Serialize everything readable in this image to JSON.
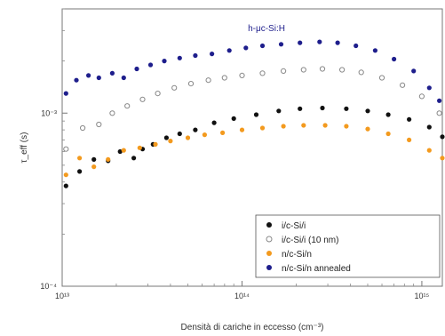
{
  "chart_data": {
    "type": "scatter",
    "title": "",
    "annotation": "h-μc-Si:H",
    "xlabel": "Densità di cariche in eccesso (cm⁻³)",
    "ylabel": "τ_eff (s)",
    "x_scale": "log",
    "y_scale": "log",
    "xlim": [
      10000000000000.0,
      1300000000000000.0
    ],
    "ylim": [
      0.0001,
      0.004
    ],
    "x_ticks": [
      {
        "value": 10000000000000.0,
        "label": "10¹³"
      },
      {
        "value": 100000000000000.0,
        "label": "10¹⁴"
      },
      {
        "value": 1000000000000000.0,
        "label": "10¹⁵"
      }
    ],
    "y_ticks": [
      {
        "value": 0.0001,
        "label": "10⁻⁴"
      },
      {
        "value": 0.001,
        "label": "10⁻³"
      }
    ],
    "grid": false,
    "legend_position": "lower-right",
    "series": [
      {
        "name": "i/c-Si/i",
        "color": "#111111",
        "marker": "filled-circle",
        "x": [
          10500000000000.0,
          12500000000000.0,
          15000000000000.0,
          18000000000000.0,
          21000000000000.0,
          25000000000000.0,
          28000000000000.0,
          32000000000000.0,
          38000000000000.0,
          45000000000000.0,
          55000000000000.0,
          70000000000000.0,
          90000000000000.0,
          120000000000000.0,
          160000000000000.0,
          210000000000000.0,
          280000000000000.0,
          380000000000000.0,
          500000000000000.0,
          650000000000000.0,
          850000000000000.0,
          1100000000000000.0,
          1300000000000000.0
        ],
        "y": [
          0.00038,
          0.00046,
          0.00054,
          0.00053,
          0.0006,
          0.00055,
          0.00062,
          0.00066,
          0.00072,
          0.00076,
          0.0008,
          0.00088,
          0.00093,
          0.00098,
          0.00103,
          0.00106,
          0.00107,
          0.00106,
          0.00103,
          0.00098,
          0.00092,
          0.00083,
          0.00073
        ]
      },
      {
        "name": "i/c-Si/i (10 nm)",
        "color": "#888888",
        "marker": "open-circle",
        "x": [
          10500000000000.0,
          13000000000000.0,
          16000000000000.0,
          19000000000000.0,
          23000000000000.0,
          28000000000000.0,
          34000000000000.0,
          42000000000000.0,
          52000000000000.0,
          65000000000000.0,
          80000000000000.0,
          100000000000000.0,
          130000000000000.0,
          170000000000000.0,
          220000000000000.0,
          280000000000000.0,
          360000000000000.0,
          460000000000000.0,
          600000000000000.0,
          780000000000000.0,
          1000000000000000.0,
          1250000000000000.0
        ],
        "y": [
          0.00062,
          0.00082,
          0.00086,
          0.001,
          0.0011,
          0.0012,
          0.0013,
          0.0014,
          0.00148,
          0.00155,
          0.0016,
          0.00165,
          0.0017,
          0.00175,
          0.00178,
          0.0018,
          0.00178,
          0.00172,
          0.0016,
          0.00145,
          0.00125,
          0.001
        ]
      },
      {
        "name": "n/c-Si/n",
        "color": "#F39A1E",
        "marker": "filled-circle",
        "x": [
          10500000000000.0,
          12500000000000.0,
          15000000000000.0,
          18000000000000.0,
          22000000000000.0,
          27000000000000.0,
          33000000000000.0,
          40000000000000.0,
          50000000000000.0,
          62000000000000.0,
          78000000000000.0,
          100000000000000.0,
          130000000000000.0,
          170000000000000.0,
          220000000000000.0,
          290000000000000.0,
          380000000000000.0,
          500000000000000.0,
          650000000000000.0,
          850000000000000.0,
          1100000000000000.0,
          1300000000000000.0
        ],
        "y": [
          0.00044,
          0.00055,
          0.00049,
          0.00054,
          0.00061,
          0.00063,
          0.00066,
          0.00069,
          0.00072,
          0.00075,
          0.00077,
          0.0008,
          0.00082,
          0.00084,
          0.00085,
          0.00085,
          0.00084,
          0.00081,
          0.00076,
          0.0007,
          0.00061,
          0.00055
        ]
      },
      {
        "name": "n/c-Si/n annealed",
        "color": "#1E1E8C",
        "marker": "filled-circle",
        "x": [
          10500000000000.0,
          12000000000000.0,
          14000000000000.0,
          16000000000000.0,
          19000000000000.0,
          22000000000000.0,
          26000000000000.0,
          31000000000000.0,
          37000000000000.0,
          45000000000000.0,
          55000000000000.0,
          68000000000000.0,
          85000000000000.0,
          105000000000000.0,
          130000000000000.0,
          165000000000000.0,
          210000000000000.0,
          270000000000000.0,
          340000000000000.0,
          430000000000000.0,
          550000000000000.0,
          700000000000000.0,
          900000000000000.0,
          1100000000000000.0,
          1250000000000000.0
        ],
        "y": [
          0.0013,
          0.00155,
          0.00165,
          0.0016,
          0.0017,
          0.0016,
          0.0018,
          0.0019,
          0.002,
          0.00208,
          0.00215,
          0.0022,
          0.0023,
          0.00238,
          0.00245,
          0.0025,
          0.00255,
          0.00258,
          0.00255,
          0.00245,
          0.0023,
          0.00205,
          0.00175,
          0.0014,
          0.00118
        ]
      }
    ]
  }
}
